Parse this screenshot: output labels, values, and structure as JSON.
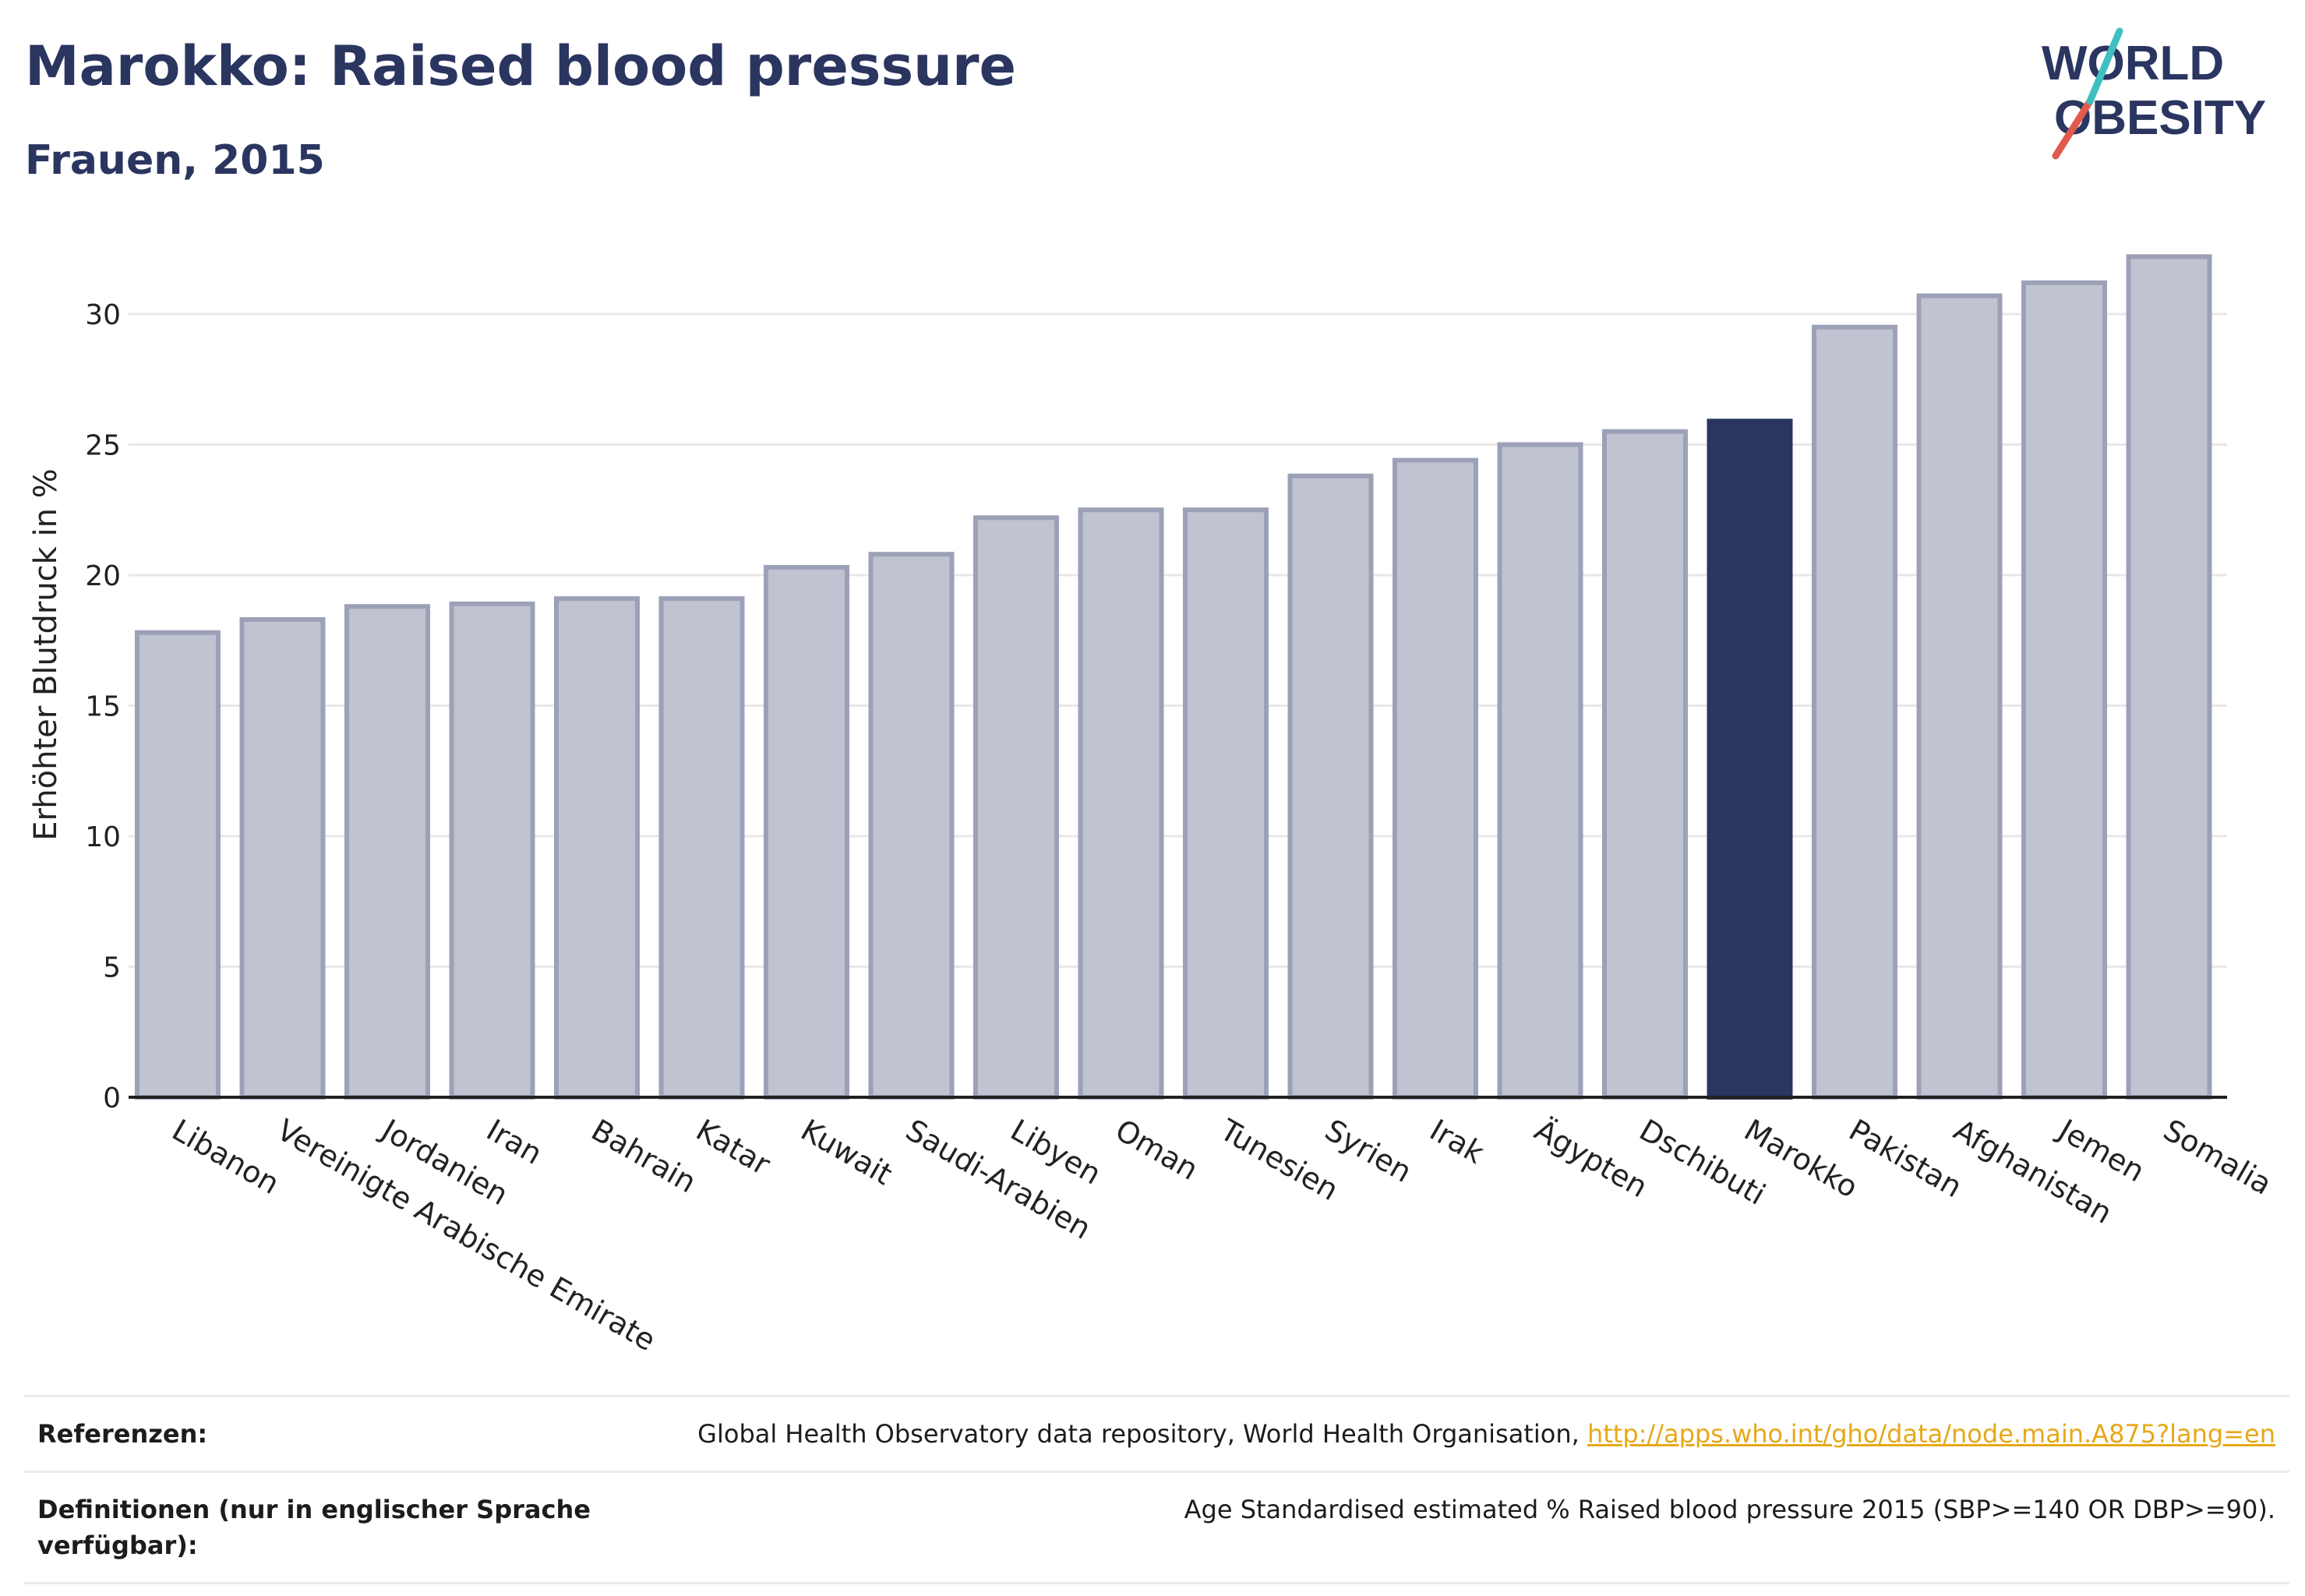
{
  "header": {
    "title": "Marokko: Raised blood pressure",
    "subtitle": "Frauen, 2015"
  },
  "logo": {
    "line1": "WORLD",
    "line2": "OBESITY",
    "colors": {
      "text": "#2a3560",
      "slash_red": "#e05a4e",
      "slash_teal": "#3fbfbf"
    }
  },
  "colors": {
    "bar_default": "#c0c3d0",
    "bar_default_border": "#9ca1b8",
    "bar_highlight": "#2a3560",
    "grid": "#e8e8e8",
    "axis": "#222222",
    "link": "#e7a817"
  },
  "chart_data": {
    "type": "bar",
    "title": "Marokko: Raised blood pressure",
    "subtitle": "Frauen, 2015",
    "xlabel": "",
    "ylabel": "Erhöhter Blutdruck in %",
    "ylim": [
      0,
      33
    ],
    "yticks": [
      0,
      5,
      10,
      15,
      20,
      25,
      30
    ],
    "grid": true,
    "categories": [
      "Libanon",
      "Vereinigte Arabische Emirate",
      "Jordanien",
      "Iran",
      "Bahrain",
      "Katar",
      "Kuwait",
      "Saudi-Arabien",
      "Libyen",
      "Oman",
      "Tunesien",
      "Syrien",
      "Irak",
      "Ägypten",
      "Dschibuti",
      "Marokko",
      "Pakistan",
      "Afghanistan",
      "Jemen",
      "Somalia"
    ],
    "values": [
      17.8,
      18.3,
      18.8,
      18.9,
      19.1,
      19.1,
      20.3,
      20.8,
      22.2,
      22.5,
      22.5,
      23.8,
      24.4,
      25.0,
      25.5,
      25.9,
      29.5,
      30.7,
      31.2,
      32.2
    ],
    "highlight": "Marokko"
  },
  "footer": {
    "references_label": "Referenzen:",
    "references_text": "Global Health Observatory data repository, World Health Organisation, ",
    "references_link": "http://apps.who.int/gho/data/node.main.A875?lang=en",
    "definitions_label": "Definitionen (nur in englischer Sprache verfügbar):",
    "definitions_text": "Age Standardised estimated % Raised blood pressure 2015 (SBP>=140 OR DBP>=90)."
  }
}
